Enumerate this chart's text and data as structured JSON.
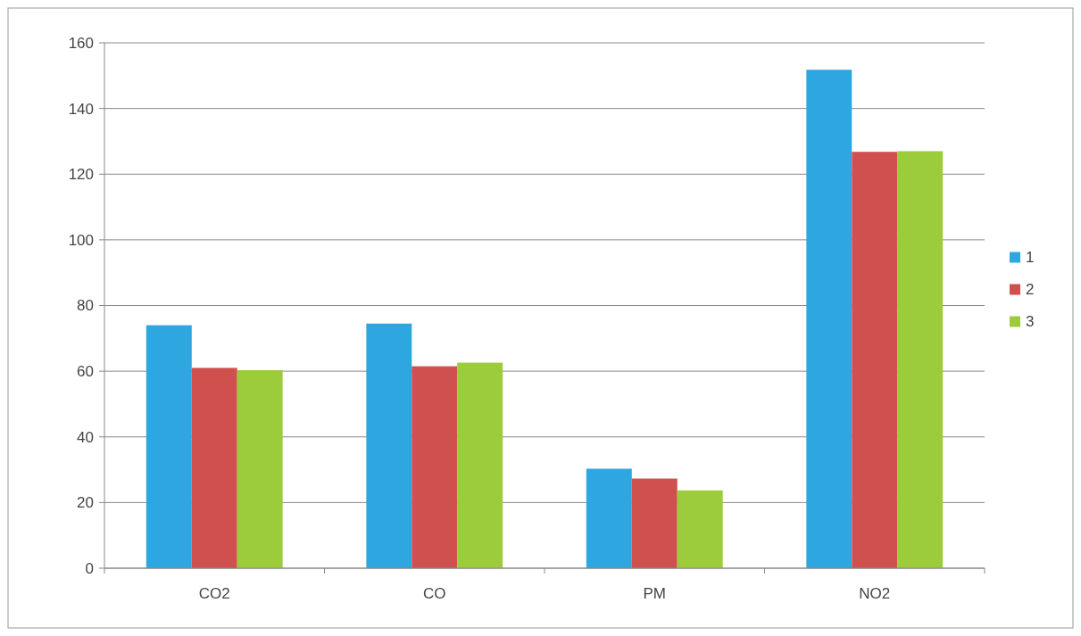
{
  "chart_data": {
    "type": "bar",
    "categories": [
      "CO2",
      "CO",
      "PM",
      "NO2"
    ],
    "series": [
      {
        "name": "1",
        "color": "#2ea7e0",
        "values": [
          74,
          74.5,
          30.3,
          151.8
        ]
      },
      {
        "name": "2",
        "color": "#d0504d",
        "values": [
          61,
          61.5,
          27.3,
          126.8
        ]
      },
      {
        "name": "3",
        "color": "#9ccc3c",
        "values": [
          60.3,
          62.6,
          23.7,
          127
        ]
      }
    ],
    "ylim": [
      0,
      160
    ],
    "yticks": [
      0,
      20,
      40,
      60,
      80,
      100,
      120,
      140,
      160
    ],
    "grid": "y",
    "legend": "right"
  }
}
